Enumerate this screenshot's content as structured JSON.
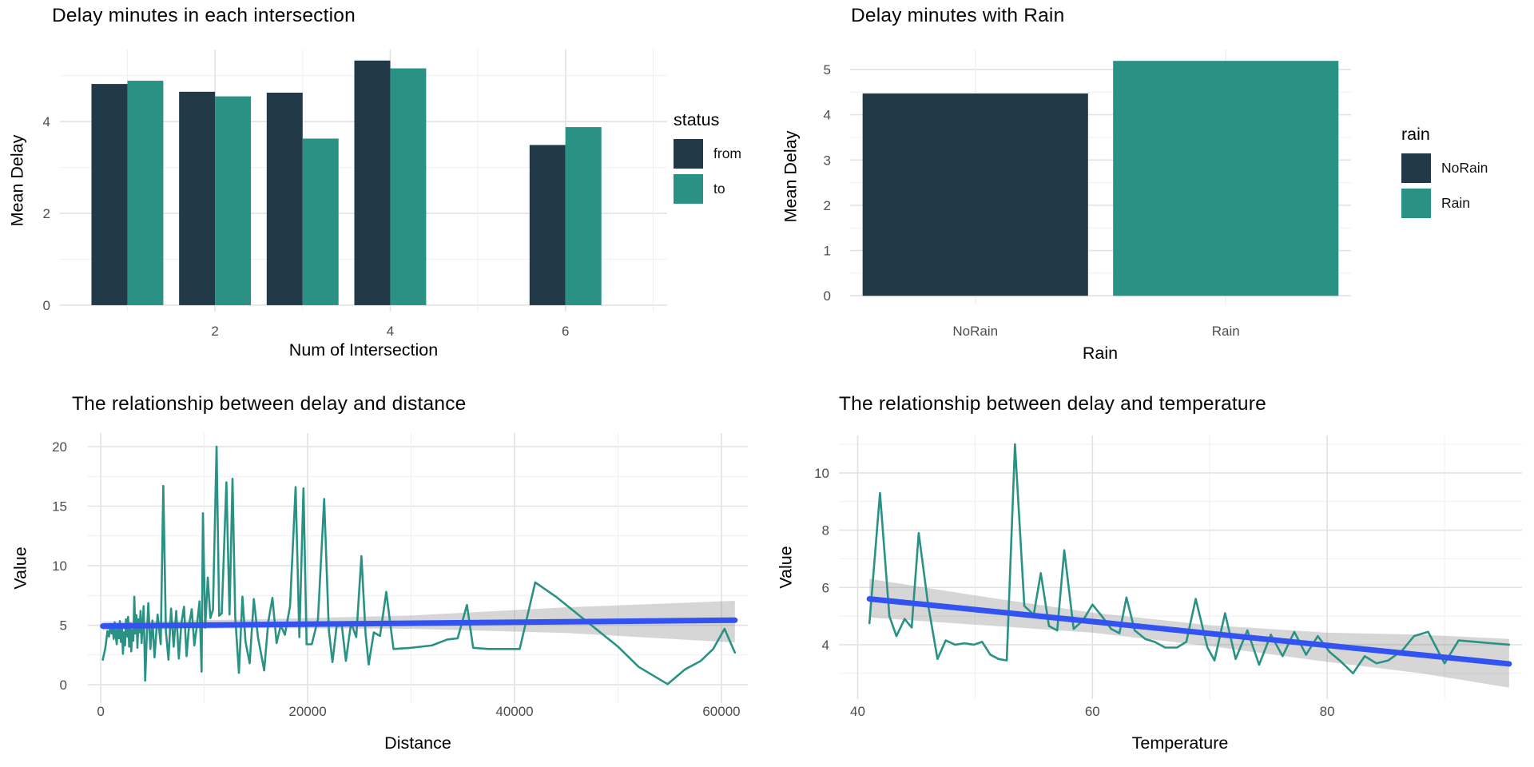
{
  "palette": {
    "dark": "#223a47",
    "teal": "#2a9285",
    "smooth_blue": "#3353f1",
    "band_gray": "#7f7f7f",
    "band_opacity": 0.32,
    "grid_major": "#e2e2e2",
    "grid_minor": "#efefef",
    "tick_label": "#4d4d4d"
  },
  "chart_data": [
    {
      "type": "bar",
      "title": "Delay minutes in each intersection",
      "xlabel": "Num of Intersection",
      "ylabel": "Mean Delay",
      "legend": {
        "title": "status",
        "entries": [
          {
            "label": "from",
            "color": "dark"
          },
          {
            "label": "to",
            "color": "teal"
          }
        ]
      },
      "categories": [
        1,
        2,
        3,
        4,
        6
      ],
      "series": [
        {
          "name": "from",
          "color": "dark",
          "values": [
            4.82,
            4.65,
            4.63,
            5.33,
            3.49
          ]
        },
        {
          "name": "to",
          "color": "teal",
          "values": [
            4.89,
            4.55,
            3.63,
            5.16,
            3.88
          ]
        }
      ],
      "bar_width": 0.41,
      "xlim": [
        0.23,
        7.16
      ],
      "ylim": [
        -0.14,
        5.57
      ],
      "x_ticks": [
        2,
        4,
        6
      ],
      "x_minor": [
        1,
        3,
        5,
        7
      ],
      "y_ticks": [
        0,
        2,
        4
      ],
      "y_minor": [
        1,
        3,
        5
      ],
      "grid": true,
      "legend_position": "right"
    },
    {
      "type": "bar-categorical",
      "title": "Delay minutes with Rain",
      "xlabel": "Rain",
      "ylabel": "Mean Delay",
      "legend": {
        "title": "rain",
        "entries": [
          {
            "label": "NoRain",
            "color": "dark"
          },
          {
            "label": "Rain",
            "color": "teal"
          }
        ]
      },
      "categories": [
        "NoRain",
        "Rain"
      ],
      "values": [
        4.47,
        5.19
      ],
      "colors": [
        "dark",
        "teal"
      ],
      "bar_fraction": 0.9,
      "ylim": [
        -0.19,
        5.44
      ],
      "y_ticks": [
        0,
        1,
        2,
        3,
        4,
        5
      ],
      "y_minor": [
        0.5,
        1.5,
        2.5,
        3.5,
        4.5
      ],
      "grid": true,
      "legend_position": "right"
    },
    {
      "type": "line",
      "title": "The relationship between delay and distance",
      "xlabel": "Distance",
      "ylabel": "Value",
      "xlim": [
        -1240,
        62550
      ],
      "ylim": [
        -1.54,
        21.14
      ],
      "x_ticks": [
        0,
        20000,
        40000,
        60000
      ],
      "x_minor": [
        10000,
        30000,
        50000
      ],
      "y_ticks": [
        0,
        5,
        10,
        15,
        20
      ],
      "y_minor": [
        2.5,
        7.5,
        12.5,
        17.5
      ],
      "grid": true,
      "points": [
        [
          200,
          2.1
        ],
        [
          450,
          3.1
        ],
        [
          650,
          4.5
        ],
        [
          800,
          4.05
        ],
        [
          950,
          5.1
        ],
        [
          1050,
          4.3
        ],
        [
          1150,
          4.95
        ],
        [
          1250,
          3.85
        ],
        [
          1350,
          5.25
        ],
        [
          1450,
          4.1
        ],
        [
          1550,
          3.4
        ],
        [
          1650,
          5.05
        ],
        [
          1750,
          3.9
        ],
        [
          1850,
          5.35
        ],
        [
          1950,
          3.6
        ],
        [
          2050,
          4.85
        ],
        [
          2150,
          2.6
        ],
        [
          2250,
          4.4
        ],
        [
          2350,
          3.3
        ],
        [
          2450,
          5.5
        ],
        [
          2550,
          4.05
        ],
        [
          2650,
          5.7
        ],
        [
          2750,
          3.2
        ],
        [
          2850,
          5.15
        ],
        [
          2950,
          2.8
        ],
        [
          3050,
          4.6
        ],
        [
          3150,
          3.7
        ],
        [
          3250,
          7.4
        ],
        [
          3350,
          4.3
        ],
        [
          3450,
          5.85
        ],
        [
          3550,
          3.1
        ],
        [
          3650,
          5.5
        ],
        [
          3750,
          4.4
        ],
        [
          3850,
          6.2
        ],
        [
          3950,
          3.5
        ],
        [
          4150,
          6.6
        ],
        [
          4300,
          0.35
        ],
        [
          4450,
          4.0
        ],
        [
          4600,
          6.85
        ],
        [
          4800,
          3.0
        ],
        [
          5000,
          5.4
        ],
        [
          5200,
          2.3
        ],
        [
          5500,
          5.9
        ],
        [
          5800,
          3.4
        ],
        [
          6050,
          16.7
        ],
        [
          6300,
          4.5
        ],
        [
          6550,
          2.1
        ],
        [
          6800,
          6.4
        ],
        [
          7050,
          3.2
        ],
        [
          7300,
          6.2
        ],
        [
          7550,
          2.2
        ],
        [
          7800,
          5.2
        ],
        [
          8050,
          6.55
        ],
        [
          8300,
          2.4
        ],
        [
          8550,
          5.1
        ],
        [
          8800,
          6.35
        ],
        [
          9050,
          3.3
        ],
        [
          9300,
          5.0
        ],
        [
          9550,
          7.0
        ],
        [
          9750,
          1.1
        ],
        [
          9880,
          14.4
        ],
        [
          10100,
          4.8
        ],
        [
          10350,
          9.0
        ],
        [
          10600,
          5.6
        ],
        [
          10850,
          6.3
        ],
        [
          11200,
          20.0
        ],
        [
          11450,
          5.8
        ],
        [
          11700,
          6.0
        ],
        [
          12150,
          17.0
        ],
        [
          12450,
          5.9
        ],
        [
          12740,
          17.3
        ],
        [
          13000,
          5.7
        ],
        [
          13360,
          1.0
        ],
        [
          13700,
          7.4
        ],
        [
          14000,
          3.6
        ],
        [
          14400,
          1.8
        ],
        [
          14800,
          7.2
        ],
        [
          15200,
          4.0
        ],
        [
          15800,
          1.2
        ],
        [
          16200,
          5.3
        ],
        [
          16600,
          7.3
        ],
        [
          17000,
          3.5
        ],
        [
          17400,
          5.0
        ],
        [
          17800,
          4.2
        ],
        [
          18300,
          6.6
        ],
        [
          18840,
          16.6
        ],
        [
          19200,
          4.0
        ],
        [
          19600,
          16.5
        ],
        [
          19900,
          3.4
        ],
        [
          20400,
          3.4
        ],
        [
          21000,
          5.5
        ],
        [
          21600,
          15.6
        ],
        [
          22050,
          4.6
        ],
        [
          22400,
          1.9
        ],
        [
          22800,
          4.9
        ],
        [
          23300,
          5.0
        ],
        [
          23700,
          2.0
        ],
        [
          24200,
          5.2
        ],
        [
          24700,
          4.0
        ],
        [
          25200,
          10.8
        ],
        [
          25600,
          4.3
        ],
        [
          25900,
          1.7
        ],
        [
          26400,
          4.4
        ],
        [
          27000,
          4.1
        ],
        [
          27600,
          7.8
        ],
        [
          28300,
          3.0
        ],
        [
          30000,
          3.1
        ],
        [
          32000,
          3.3
        ],
        [
          33500,
          3.8
        ],
        [
          34500,
          3.9
        ],
        [
          35400,
          6.7
        ],
        [
          36000,
          3.1
        ],
        [
          37500,
          3.0
        ],
        [
          39000,
          3.0
        ],
        [
          40500,
          3.0
        ],
        [
          42000,
          8.6
        ],
        [
          44000,
          7.4
        ],
        [
          46000,
          6.0
        ],
        [
          48000,
          4.6
        ],
        [
          50000,
          3.2
        ],
        [
          52000,
          1.5
        ],
        [
          54800,
          0.05
        ],
        [
          56500,
          1.3
        ],
        [
          58000,
          2.0
        ],
        [
          59200,
          3.0
        ],
        [
          60300,
          4.7
        ],
        [
          61300,
          2.7
        ]
      ],
      "smooth": [
        [
          200,
          4.93
        ],
        [
          61300,
          5.42
        ]
      ],
      "band_upper": [
        [
          200,
          5.3
        ],
        [
          15000,
          5.5
        ],
        [
          30000,
          5.82
        ],
        [
          45000,
          6.5
        ],
        [
          61300,
          7.05
        ]
      ],
      "band_lower": [
        [
          200,
          4.58
        ],
        [
          15000,
          4.75
        ],
        [
          30000,
          4.7
        ],
        [
          45000,
          4.35
        ],
        [
          61300,
          3.55
        ]
      ]
    },
    {
      "type": "line",
      "title": "The relationship between delay and temperature",
      "xlabel": "Temperature",
      "ylabel": "Value",
      "xlim": [
        38.4,
        96.6
      ],
      "ylim": [
        2.1,
        11.31
      ],
      "x_ticks": [
        40,
        60,
        80
      ],
      "x_minor": [
        50,
        70,
        90
      ],
      "y_ticks": [
        4,
        6,
        8,
        10
      ],
      "y_minor": [
        3,
        5,
        7,
        9,
        11
      ],
      "grid": true,
      "points": [
        [
          41,
          4.75
        ],
        [
          41.9,
          9.3
        ],
        [
          42.7,
          5.0
        ],
        [
          43.3,
          4.3
        ],
        [
          44,
          4.9
        ],
        [
          44.6,
          4.6
        ],
        [
          45.2,
          7.9
        ],
        [
          46,
          5.4
        ],
        [
          46.8,
          3.5
        ],
        [
          47.5,
          4.15
        ],
        [
          48.3,
          4.0
        ],
        [
          49.1,
          4.05
        ],
        [
          49.9,
          4.0
        ],
        [
          50.6,
          4.1
        ],
        [
          51.3,
          3.65
        ],
        [
          52,
          3.5
        ],
        [
          52.7,
          3.45
        ],
        [
          53.4,
          11.0
        ],
        [
          54.2,
          5.35
        ],
        [
          55,
          5.05
        ],
        [
          55.6,
          6.5
        ],
        [
          56.3,
          4.65
        ],
        [
          57,
          4.5
        ],
        [
          57.6,
          7.3
        ],
        [
          58.4,
          4.55
        ],
        [
          59.2,
          4.85
        ],
        [
          60,
          5.4
        ],
        [
          60.8,
          5.0
        ],
        [
          61.6,
          4.55
        ],
        [
          62.3,
          4.4
        ],
        [
          62.9,
          5.65
        ],
        [
          63.6,
          4.5
        ],
        [
          64.5,
          4.2
        ],
        [
          65.3,
          4.1
        ],
        [
          66.2,
          3.9
        ],
        [
          67.2,
          3.9
        ],
        [
          68,
          4.1
        ],
        [
          68.8,
          5.6
        ],
        [
          69.8,
          3.9
        ],
        [
          70.4,
          3.45
        ],
        [
          71.3,
          5.1
        ],
        [
          72.2,
          3.5
        ],
        [
          73.2,
          4.5
        ],
        [
          74.2,
          3.3
        ],
        [
          75.2,
          4.35
        ],
        [
          76.2,
          3.6
        ],
        [
          77.2,
          4.45
        ],
        [
          78.2,
          3.65
        ],
        [
          79.2,
          4.3
        ],
        [
          80.2,
          3.75
        ],
        [
          81.2,
          3.4
        ],
        [
          82.2,
          3.0
        ],
        [
          83.2,
          3.6
        ],
        [
          84.2,
          3.35
        ],
        [
          85.2,
          3.45
        ],
        [
          86.4,
          3.8
        ],
        [
          87.4,
          4.3
        ],
        [
          88.6,
          4.45
        ],
        [
          90,
          3.35
        ],
        [
          91.2,
          4.15
        ],
        [
          92.6,
          4.1
        ],
        [
          94,
          4.05
        ],
        [
          95.5,
          4.0
        ]
      ],
      "smooth": [
        [
          41,
          5.6
        ],
        [
          95.5,
          3.33
        ]
      ],
      "band_upper": [
        [
          41,
          6.3
        ],
        [
          50,
          5.72
        ],
        [
          60,
          5.12
        ],
        [
          70,
          4.68
        ],
        [
          80,
          4.42
        ],
        [
          88,
          4.35
        ],
        [
          95.5,
          4.2
        ]
      ],
      "band_lower": [
        [
          41,
          4.95
        ],
        [
          50,
          4.7
        ],
        [
          60,
          4.42
        ],
        [
          70,
          3.95
        ],
        [
          80,
          3.4
        ],
        [
          88,
          3.0
        ],
        [
          95.5,
          2.5
        ]
      ]
    }
  ]
}
